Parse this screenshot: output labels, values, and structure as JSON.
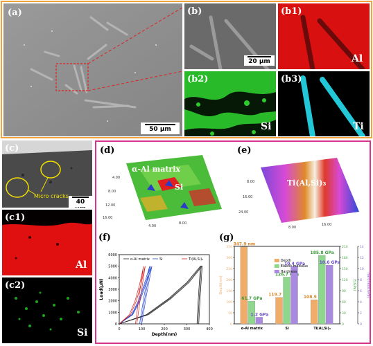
{
  "panels": {
    "a": {
      "label": "(a)",
      "scale": "50 μm"
    },
    "b": {
      "label": "(b)",
      "scale": "20 μm"
    },
    "b1": {
      "label": "(b1)",
      "element": "Al"
    },
    "b2": {
      "label": "(b2)",
      "element": "Si"
    },
    "b3": {
      "label": "(b3)",
      "element": "Ti"
    },
    "c": {
      "label": "(c)",
      "scale": "40 μm",
      "annotation": "Micro cracks"
    },
    "c1": {
      "label": "(c1)",
      "element": "Al"
    },
    "c2": {
      "label": "(c2)",
      "element": "Si"
    },
    "d": {
      "label": "(d)",
      "matrix_label": "α-Al matrix",
      "phase_label": "Si"
    },
    "e": {
      "label": "(e)",
      "phase_label": "Ti(Al,Si)₃"
    },
    "f": {
      "label": "(f)"
    },
    "g": {
      "label": "(g)"
    }
  },
  "colors": {
    "orange_frame": "#f2a33a",
    "magenta_frame": "#d6338f",
    "al_map": "#e01010",
    "si_map": "#22cc22",
    "ti_map": "#22c8d8"
  },
  "chart_data": [
    {
      "type": "line",
      "panel": "f",
      "xlabel": "Depth(nm)",
      "ylabel": "Load(μN)",
      "xlim": [
        0,
        400
      ],
      "ylim": [
        0,
        6000
      ],
      "xticks": [
        "0",
        "100",
        "200",
        "300",
        "400"
      ],
      "yticks": [
        "0",
        "1000",
        "2000",
        "3000",
        "4000",
        "5000",
        "6000"
      ],
      "legend": [
        "α-Al matrix",
        "Si",
        "Ti(Al,Si)₃"
      ],
      "series": [
        {
          "name": "α-Al matrix",
          "color": "#222222",
          "curves": [
            {
              "load": [
                [
                  0,
                  0
                ],
                [
                  120,
                  800
                ],
                [
                  220,
                  2200
                ],
                [
                  300,
                  3600
                ],
                [
                  360,
                  5000
                ]
              ],
              "unload": [
                [
                  360,
                  5000
                ],
                [
                  350,
                  2000
                ],
                [
                  345,
                  0
                ]
              ]
            },
            {
              "load": [
                [
                  0,
                  0
                ],
                [
                  130,
                  800
                ],
                [
                  230,
                  2200
                ],
                [
                  310,
                  3600
                ],
                [
                  368,
                  5000
                ]
              ],
              "unload": [
                [
                  368,
                  5000
                ],
                [
                  358,
                  2000
                ],
                [
                  353,
                  0
                ]
              ]
            },
            {
              "load": [
                [
                  0,
                  0
                ],
                [
                  125,
                  800
                ],
                [
                  225,
                  2200
                ],
                [
                  305,
                  3600
                ],
                [
                  364,
                  5000
                ]
              ],
              "unload": [
                [
                  364,
                  5000
                ],
                [
                  354,
                  2000
                ],
                [
                  349,
                  0
                ]
              ]
            }
          ]
        },
        {
          "name": "Si",
          "color": "#2b4bd0",
          "curves": [
            {
              "load": [
                [
                  0,
                  0
                ],
                [
                  55,
                  800
                ],
                [
                  85,
                  2000
                ],
                [
                  110,
                  3400
                ],
                [
                  135,
                  5000
                ]
              ],
              "unload": [
                [
                  135,
                  5000
                ],
                [
                  110,
                  2400
                ],
                [
                  90,
                  0
                ]
              ]
            },
            {
              "load": [
                [
                  0,
                  0
                ],
                [
                  60,
                  800
                ],
                [
                  92,
                  2000
                ],
                [
                  118,
                  3400
                ],
                [
                  145,
                  5000
                ]
              ],
              "unload": [
                [
                  145,
                  5000
                ],
                [
                  120,
                  2400
                ],
                [
                  100,
                  0
                ]
              ]
            },
            {
              "load": [
                [
                  0,
                  0
                ],
                [
                  58,
                  800
                ],
                [
                  88,
                  2000
                ],
                [
                  114,
                  3400
                ],
                [
                  140,
                  5000
                ]
              ],
              "unload": [
                [
                  140,
                  5000
                ],
                [
                  115,
                  2400
                ],
                [
                  95,
                  0
                ]
              ]
            }
          ]
        },
        {
          "name": "Ti(Al,Si)₃",
          "color": "#d62020",
          "curves": [
            {
              "load": [
                [
                  0,
                  0
                ],
                [
                  45,
                  800
                ],
                [
                  70,
                  2000
                ],
                [
                  90,
                  3400
                ],
                [
                  108,
                  5000
                ]
              ],
              "unload": [
                [
                  108,
                  5000
                ],
                [
                  88,
                  2400
                ],
                [
                  72,
                  0
                ]
              ]
            },
            {
              "load": [
                [
                  0,
                  0
                ],
                [
                  50,
                  800
                ],
                [
                  76,
                  2000
                ],
                [
                  96,
                  3400
                ],
                [
                  115,
                  5000
                ]
              ],
              "unload": [
                [
                  115,
                  5000
                ],
                [
                  95,
                  2400
                ],
                [
                  78,
                  0
                ]
              ]
            }
          ]
        }
      ]
    },
    {
      "type": "bar",
      "panel": "g",
      "categories": [
        "α-Al matrix",
        "Si",
        "Ti(Al,Si)₃"
      ],
      "ylabel_left": "Depth(nm)",
      "ylabel_right_outer": "Hardness(GPa)",
      "ylabel_right_inner": "E(GPa)",
      "ylim_left": [
        0,
        350
      ],
      "ylim_right_outer": [
        0,
        14
      ],
      "ylim_right_inner": [
        0,
        210
      ],
      "yticks_left": [
        "0",
        "50",
        "100",
        "150",
        "200",
        "250",
        "300",
        "350"
      ],
      "yticks_right_outer": [
        "0",
        "2",
        "4",
        "6",
        "8",
        "10",
        "12",
        "14"
      ],
      "yticks_right_inner": [
        "0",
        "30",
        "60",
        "90",
        "120",
        "150",
        "180",
        "210"
      ],
      "legend": [
        "Depth",
        "Elastic modulus",
        "Hardness"
      ],
      "series": [
        {
          "name": "Depth",
          "color": "#f0ad6a",
          "values": [
            347.9,
            119.7,
            108.9
          ],
          "labels": [
            "347.9 nm",
            "119.7 nm",
            "108.9 nm"
          ]
        },
        {
          "name": "Elastic modulus",
          "color": "#8fd68f",
          "values": [
            61.7,
            126.7,
            185.8
          ],
          "labels": [
            "61.7 GPa",
            "126.7 GPa",
            "185.8 GPa"
          ]
        },
        {
          "name": "Hardness",
          "color": "#a98ae0",
          "values": [
            1.2,
            10.4,
            10.6
          ],
          "labels": [
            "1.2 GPa",
            "10.4 GPa",
            "10.6 GPa"
          ]
        }
      ]
    }
  ]
}
